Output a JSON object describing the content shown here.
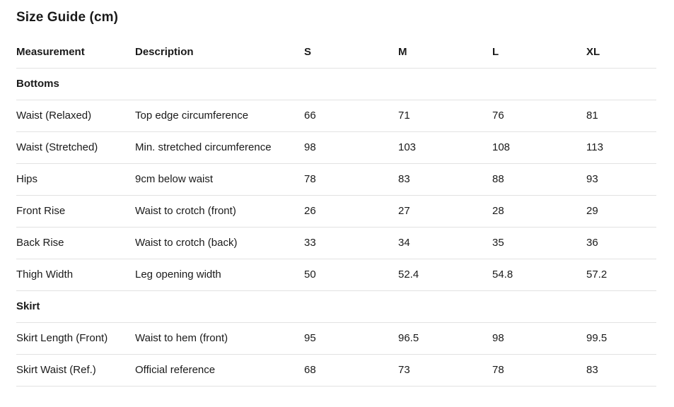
{
  "page": {
    "title": "Size Guide (cm)"
  },
  "colors": {
    "text": "#1a1a1a",
    "divider": "#e2e2e2",
    "background": "#ffffff"
  },
  "table": {
    "columns": [
      "Measurement",
      "Description",
      "S",
      "M",
      "L",
      "XL"
    ],
    "sections": [
      {
        "label": "Bottoms",
        "rows": [
          {
            "measurement": "Waist (Relaxed)",
            "description": "Top edge circumference",
            "values": [
              "66",
              "71",
              "76",
              "81"
            ]
          },
          {
            "measurement": "Waist (Stretched)",
            "description": "Min. stretched circumference",
            "values": [
              "98",
              "103",
              "108",
              "113"
            ]
          },
          {
            "measurement": "Hips",
            "description": "9cm below waist",
            "values": [
              "78",
              "83",
              "88",
              "93"
            ]
          },
          {
            "measurement": "Front Rise",
            "description": "Waist to crotch (front)",
            "values": [
              "26",
              "27",
              "28",
              "29"
            ]
          },
          {
            "measurement": "Back Rise",
            "description": "Waist to crotch (back)",
            "values": [
              "33",
              "34",
              "35",
              "36"
            ]
          },
          {
            "measurement": "Thigh Width",
            "description": "Leg opening width",
            "values": [
              "50",
              "52.4",
              "54.8",
              "57.2"
            ]
          }
        ]
      },
      {
        "label": "Skirt",
        "rows": [
          {
            "measurement": "Skirt Length (Front)",
            "description": "Waist to hem (front)",
            "values": [
              "95",
              "96.5",
              "98",
              "99.5"
            ]
          },
          {
            "measurement": "Skirt Waist (Ref.)",
            "description": "Official reference",
            "values": [
              "68",
              "73",
              "78",
              "83"
            ]
          }
        ]
      }
    ]
  }
}
